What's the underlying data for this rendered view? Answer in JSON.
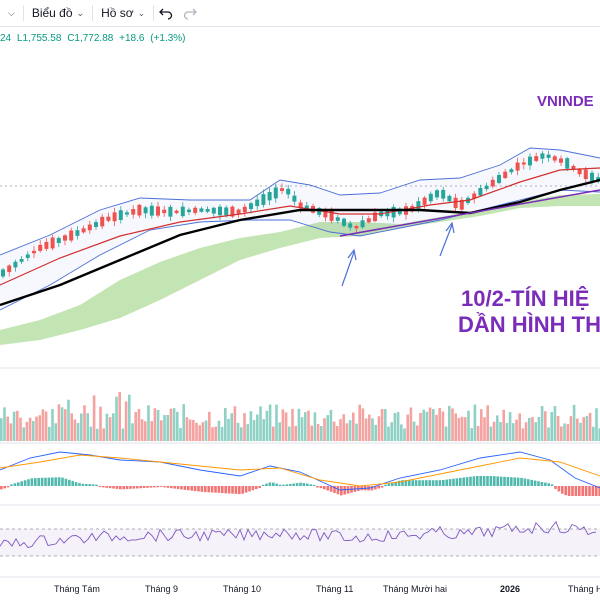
{
  "toolbar": {
    "items": [
      {
        "label": "Biểu đồ"
      },
      {
        "label": "Hồ sơ"
      }
    ]
  },
  "ohlc": {
    "open_tail": "24",
    "low": "L1,755.58",
    "close": "C1,772.88",
    "change": "+18.6",
    "change_pct": "(+1.3%)"
  },
  "chart": {
    "symbol_label": "VNINDE",
    "annotation_line1": "10/2-TÍN HIỆ",
    "annotation_line2": "DẦN HÌNH TH",
    "time_labels": [
      "Tháng Tám",
      "Tháng 9",
      "Tháng 10",
      "Tháng 11",
      "Tháng Mười hai",
      "2026",
      "Tháng H"
    ]
  },
  "colors": {
    "up": "#26a69a",
    "down": "#ef5350",
    "ma_long": "#000000",
    "bollinger": "#4a6fd8",
    "ema": "#d32f2f",
    "cloud": "#b9dfa6",
    "annotation": "#7b2cb8",
    "volume_up": "#8fd1c4",
    "volume_down": "#f4a3a0"
  }
}
